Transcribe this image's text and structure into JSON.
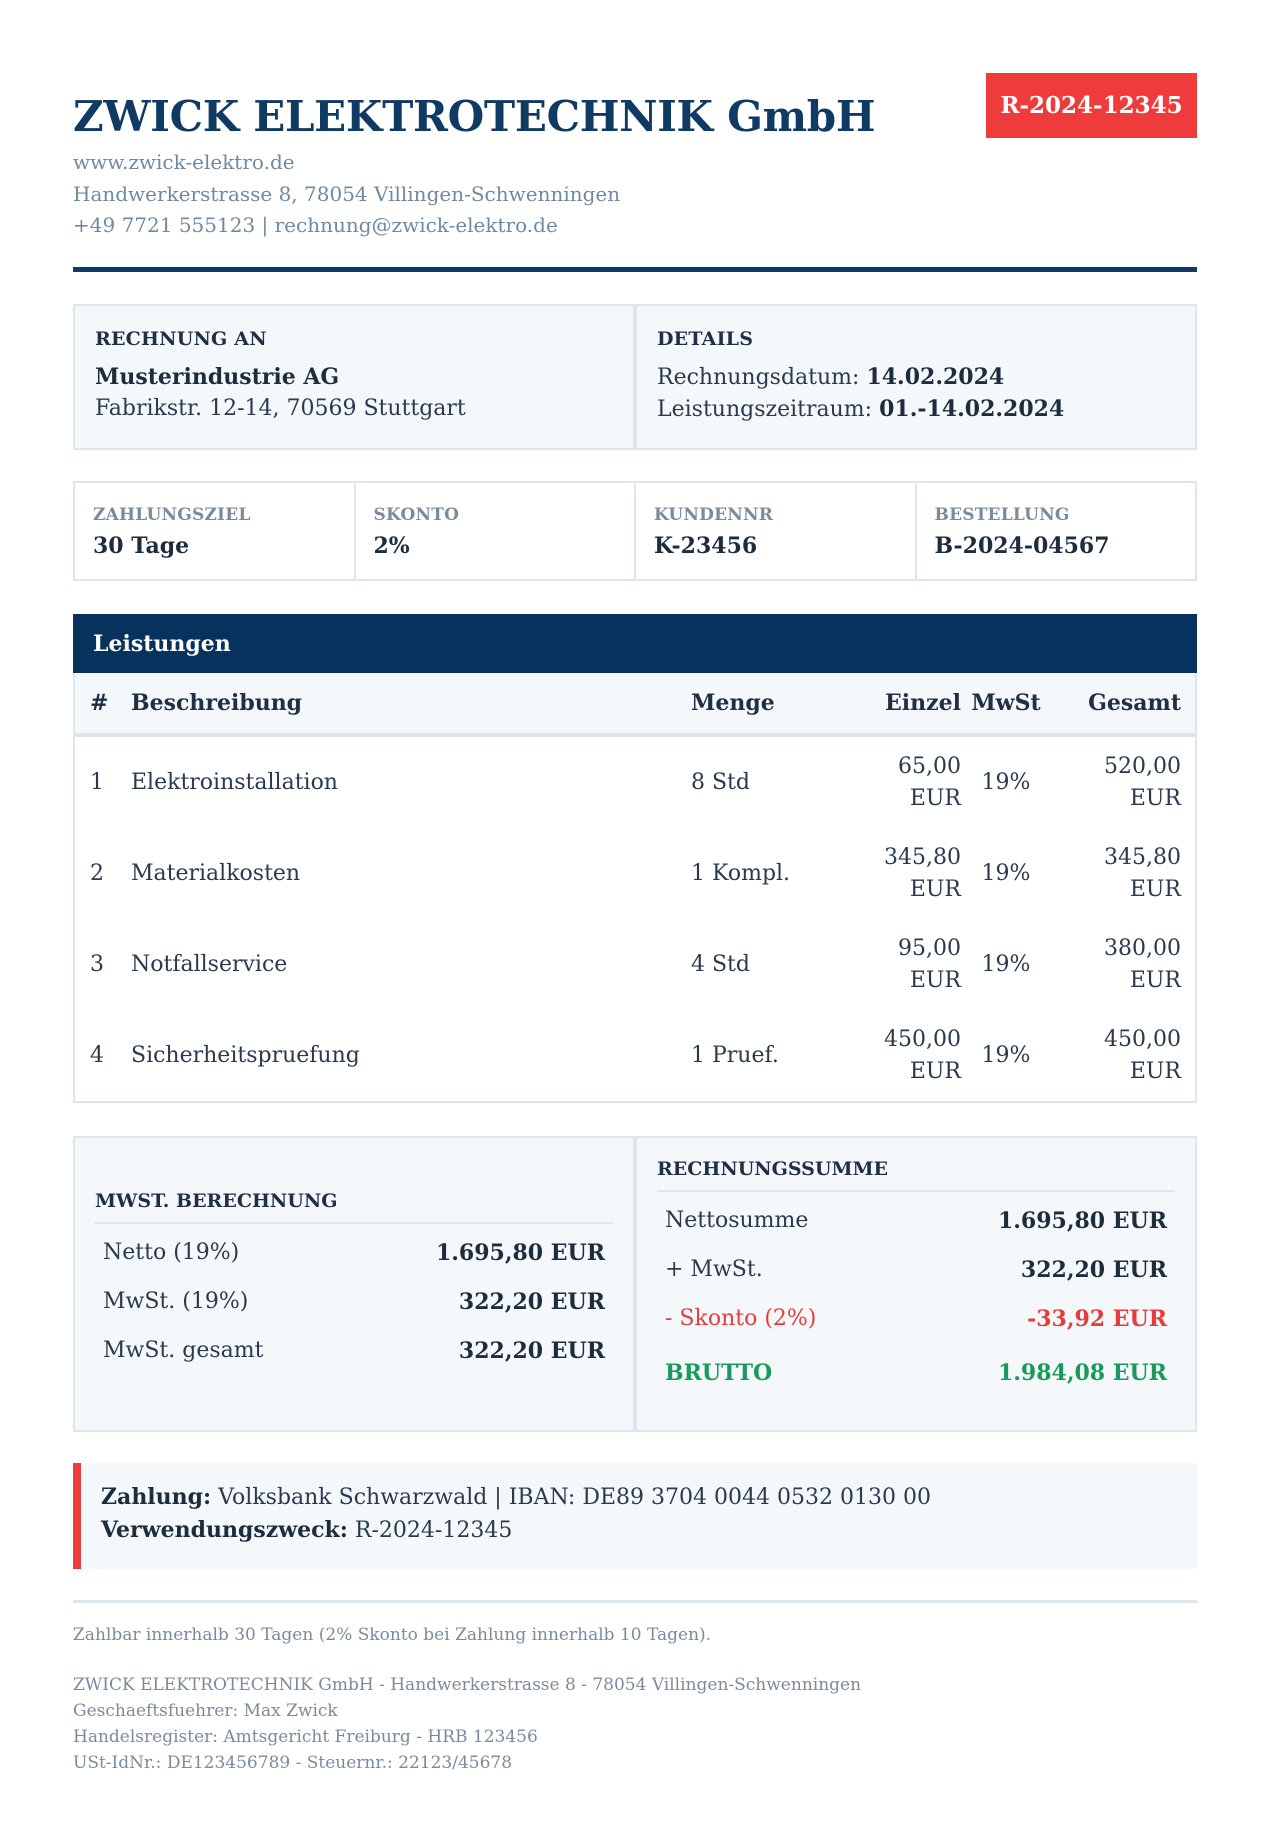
{
  "company": {
    "name": "ZWICK ELEKTROTECHNIK GmbH",
    "website": "www.zwick-elektro.de",
    "address": "Handwerkerstrasse 8, 78054 Villingen-Schwenningen",
    "contact": "+49 7721 555123 | rechnung@zwick-elektro.de"
  },
  "invoice_number": "R-2024-12345",
  "recipient": {
    "title": "RECHNUNG AN",
    "name": "Musterindustrie AG",
    "address": "Fabrikstr. 12-14, 70569 Stuttgart"
  },
  "details": {
    "title": "DETAILS",
    "date_label": "Rechnungsdatum:",
    "date_value": "14.02.2024",
    "period_label": "Leistungszeitraum:",
    "period_value": "01.-14.02.2024"
  },
  "meta": [
    {
      "label": "ZAHLUNGSZIEL",
      "value": "30 Tage"
    },
    {
      "label": "SKONTO",
      "value": "2%"
    },
    {
      "label": "KUNDENNR",
      "value": "K-23456"
    },
    {
      "label": "BESTELLUNG",
      "value": "B-2024-04567"
    }
  ],
  "items_section": {
    "title": "Leistungen",
    "headers": {
      "no": "#",
      "desc": "Beschreibung",
      "qty": "Menge",
      "unit": "Einzel",
      "vat": "MwSt",
      "total": "Gesamt"
    },
    "rows": [
      {
        "no": "1",
        "desc": "Elektroinstallation",
        "qty": "8 Std",
        "unit_amount": "65,00",
        "unit_cur": "EUR",
        "vat": "19%",
        "total_amount": "520,00",
        "total_cur": "EUR"
      },
      {
        "no": "2",
        "desc": "Materialkosten",
        "qty": "1 Kompl.",
        "unit_amount": "345,80",
        "unit_cur": "EUR",
        "vat": "19%",
        "total_amount": "345,80",
        "total_cur": "EUR"
      },
      {
        "no": "3",
        "desc": "Notfallservice",
        "qty": "4 Std",
        "unit_amount": "95,00",
        "unit_cur": "EUR",
        "vat": "19%",
        "total_amount": "380,00",
        "total_cur": "EUR"
      },
      {
        "no": "4",
        "desc": "Sicherheitspruefung",
        "qty": "1 Pruef.",
        "unit_amount": "450,00",
        "unit_cur": "EUR",
        "vat": "19%",
        "total_amount": "450,00",
        "total_cur": "EUR"
      }
    ]
  },
  "vat_calc": {
    "title": "MWST. BERECHNUNG",
    "lines": [
      {
        "label": "Netto (19%)",
        "value": "1.695,80 EUR"
      },
      {
        "label": "MwSt. (19%)",
        "value": "322,20 EUR"
      },
      {
        "label": "MwSt. gesamt",
        "value": "322,20 EUR"
      }
    ]
  },
  "invoice_total": {
    "title": "RECHNUNGSSUMME",
    "net_label": "Nettosumme",
    "net_value": "1.695,80 EUR",
    "vat_label": "+ MwSt.",
    "vat_value": "322,20 EUR",
    "discount_label": "- Skonto (2%)",
    "discount_value": "-33,92 EUR",
    "gross_label": "BRUTTO",
    "gross_value": "1.984,08 EUR"
  },
  "payment": {
    "label": "Zahlung:",
    "text": "Volksbank Schwarzwald | IBAN: DE89 3704 0044 0532 0130 00",
    "ref_label": "Verwendungszweck:",
    "ref_text": "R-2024-12345"
  },
  "footer": {
    "note": "Zahlbar innerhalb 30 Tagen (2% Skonto bei Zahlung innerhalb 10 Tagen).",
    "legal": [
      "ZWICK ELEKTROTECHNIK GmbH - Handwerkerstrasse 8 - 78054 Villingen-Schwenningen",
      "Geschaeftsfuehrer: Max Zwick",
      "Handelsregister: Amtsgericht Freiburg - HRB 123456",
      "USt-IdNr.: DE123456789 - Steuernr.: 22123/45678"
    ]
  },
  "colors": {
    "brand": "#0f3a63",
    "section_bar": "#07325d",
    "accent_red": "#ef3b3b",
    "positive_green": "#1a9a5a"
  }
}
